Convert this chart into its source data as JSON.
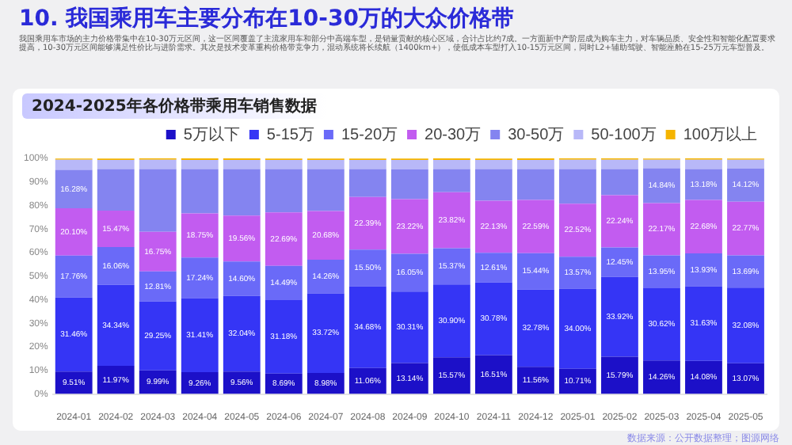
{
  "chart_data": {
    "type": "bar",
    "title": "2024-2025年各价格带乘用车销售数据",
    "subtitle": "10. 我国乘用车主要分布在10-30万的大众价格带",
    "annotations": [
      "我国乘用车市场的主力价格带集中在10-30万元区间，这一区间覆盖了主流家用车和部分中高端车型，是销量贡献的核心区域，合计占比约7成。一方面新中产阶层成为购车主力，对车辆品质、安全性和智能化配置要求提高，10-30万元区间能够满足性价比与进阶需求。其次是技术变革重构价格带竞争力，混动系统将长续航（1400km+），使低成本车型打入10-15万元区间，同时L2+辅助驾驶、智能座舱在15-25万元车型普及。",
      "数据来源：公开数据整理；图源网络"
    ],
    "categories": [
      "2024-01",
      "2024-02",
      "2024-03",
      "2024-04",
      "2024-05",
      "2024-06",
      "2024-07",
      "2024-08",
      "2024-09",
      "2024-10",
      "2024-11",
      "2024-12",
      "2025-01",
      "2025-02",
      "2025-03",
      "2025-04",
      "2025-05"
    ],
    "stacked": true,
    "ylim": [
      0,
      100
    ],
    "yticks": [
      {
        "value": 0,
        "label": "0%"
      },
      {
        "value": 10,
        "label": "10%"
      },
      {
        "value": 20,
        "label": "20%"
      },
      {
        "value": 30,
        "label": "30%"
      },
      {
        "value": 40,
        "label": "40%"
      },
      {
        "value": 50,
        "label": "50%"
      },
      {
        "value": 60,
        "label": "60%"
      },
      {
        "value": 70,
        "label": "70%"
      },
      {
        "value": 80,
        "label": "80%"
      },
      {
        "value": 90,
        "label": "90%"
      },
      {
        "value": 100,
        "label": "100%"
      }
    ],
    "legend": "top right",
    "grid": false,
    "series": [
      {
        "name": "5万以下",
        "color": "#1c10c8",
        "values": [
          9.51,
          11.97,
          9.99,
          9.26,
          9.56,
          8.69,
          8.98,
          11.06,
          13.14,
          15.57,
          16.51,
          11.56,
          10.71,
          15.79,
          14.26,
          14.08,
          13.07
        ],
        "value_labels": [
          "9.51%",
          "11.97%",
          "9.99%",
          "9.26%",
          "9.56%",
          "8.69%",
          "8.98%",
          "11.06%",
          "13.14%",
          "15.57%",
          "16.51%",
          "11.56%",
          "10.71%",
          "15.79%",
          "14.26%",
          "14.08%",
          "13.07%"
        ]
      },
      {
        "name": "5-15万",
        "color": "#3535f5",
        "values": [
          31.46,
          34.34,
          29.25,
          31.41,
          32.04,
          31.18,
          33.72,
          34.68,
          30.31,
          30.9,
          30.78,
          32.78,
          34.0,
          33.92,
          30.62,
          31.63,
          32.08
        ],
        "value_labels": [
          "31.46%",
          "34.34%",
          "29.25%",
          "31.41%",
          "32.04%",
          "31.18%",
          "33.72%",
          "34.68%",
          "30.31%",
          "30.90%",
          "30.78%",
          "32.78%",
          "34.00%",
          "33.92%",
          "30.62%",
          "31.63%",
          "32.08%"
        ]
      },
      {
        "name": "15-20万",
        "color": "#6a6af8",
        "values": [
          17.76,
          16.06,
          12.81,
          17.24,
          14.6,
          14.49,
          14.26,
          15.5,
          16.05,
          15.37,
          12.61,
          15.44,
          13.57,
          12.45,
          13.95,
          13.93,
          13.69
        ],
        "value_labels": [
          "17.76%",
          "16.06%",
          "12.81%",
          "17.24%",
          "14.60%",
          "14.49%",
          "14.26%",
          "15.50%",
          "16.05%",
          "15.37%",
          "12.61%",
          "15.44%",
          "13.57%",
          "12.45%",
          "13.95%",
          "13.93%",
          "13.69%"
        ]
      },
      {
        "name": "20-30万",
        "color": "#c25cf0",
        "values": [
          20.1,
          15.47,
          16.75,
          18.75,
          19.56,
          22.69,
          20.68,
          22.39,
          23.22,
          23.82,
          22.13,
          22.59,
          22.52,
          22.24,
          22.17,
          22.68,
          22.77
        ],
        "value_labels": [
          "20.10%",
          "15.47%",
          "16.75%",
          "18.75%",
          "19.56%",
          "22.69%",
          "20.68%",
          "22.39%",
          "23.22%",
          "23.82%",
          "22.13%",
          "22.59%",
          "22.52%",
          "22.24%",
          "22.17%",
          "22.68%",
          "22.77%"
        ]
      },
      {
        "name": "30-50万",
        "color": "#8484f0",
        "values": [
          16.28,
          17.6,
          26.7,
          18.8,
          19.7,
          18.4,
          17.8,
          11.8,
          12.7,
          9.8,
          13.4,
          13.1,
          14.7,
          11.1,
          14.84,
          13.18,
          14.12
        ],
        "value_labels": [
          "16.28%",
          null,
          null,
          null,
          null,
          null,
          null,
          null,
          null,
          null,
          null,
          null,
          null,
          null,
          "14.84%",
          "13.18%",
          "14.12%"
        ]
      },
      {
        "name": "50-100万",
        "color": "#b8b8f8",
        "values": [
          4.3,
          3.9,
          3.9,
          3.9,
          3.9,
          3.9,
          3.9,
          3.9,
          3.9,
          3.9,
          3.9,
          3.9,
          3.9,
          3.9,
          3.6,
          3.9,
          3.7
        ]
      },
      {
        "name": "100万以上",
        "color": "#f5b400",
        "values": [
          0.5,
          0.6,
          0.6,
          0.6,
          0.6,
          0.6,
          0.6,
          0.6,
          0.6,
          0.6,
          0.6,
          0.6,
          0.6,
          0.6,
          0.5,
          0.6,
          0.5
        ]
      }
    ]
  }
}
